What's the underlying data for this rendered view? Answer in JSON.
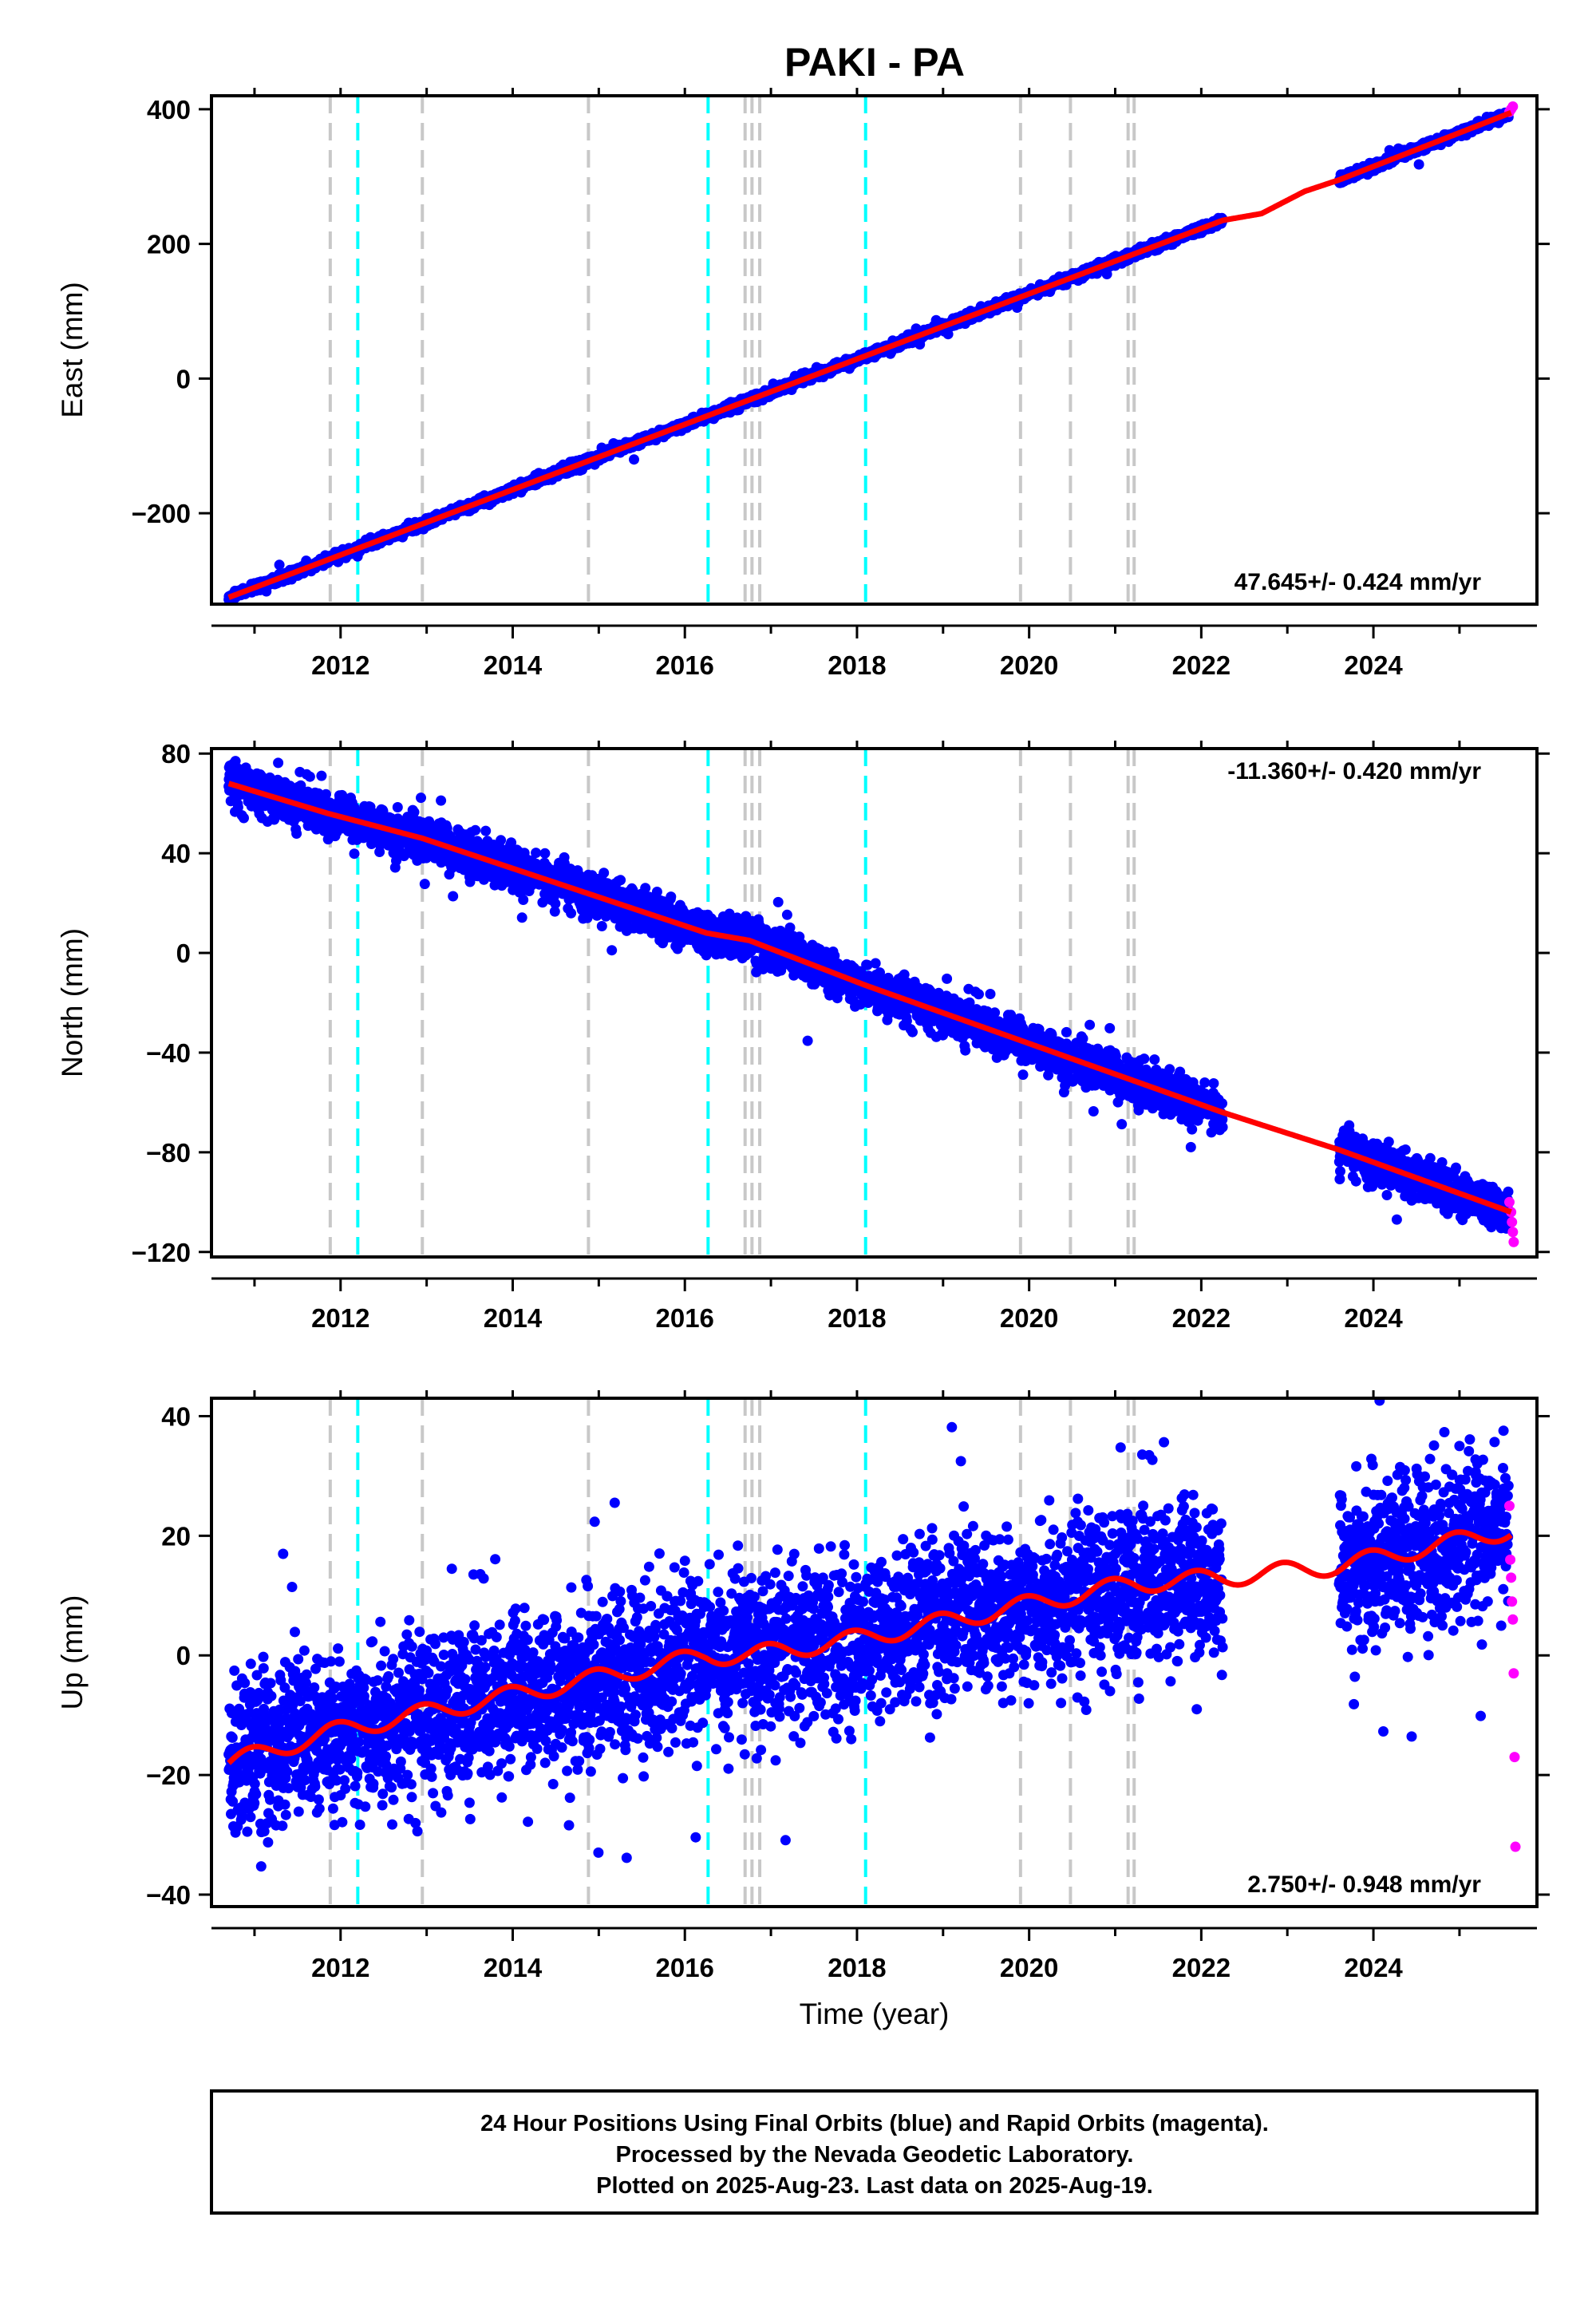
{
  "title": "PAKI - PA",
  "caption": {
    "lines": [
      "24 Hour Positions Using Final Orbits (blue) and Rapid Orbits (magenta).",
      "Processed by the Nevada Geodetic Laboratory.",
      "Plotted on 2025-Aug-23. Last data on 2025-Aug-19."
    ]
  },
  "colors": {
    "final_orbits": "#0000ff",
    "rapid_orbits": "#ff00ff",
    "model": "#ff0000",
    "equipment_change": "#c8c8c8",
    "earthquake": "#00ffff",
    "frame": "#000000"
  },
  "chart_data": [
    {
      "type": "scatter",
      "component": "east",
      "ylabel": "East (mm)",
      "xlabel": "",
      "xlim": [
        2010.5,
        2025.9
      ],
      "ylim": [
        -335,
        420
      ],
      "yticks": [
        -200,
        0,
        200,
        400
      ],
      "xticks": [
        2012,
        2014,
        2016,
        2018,
        2020,
        2022,
        2024
      ],
      "rate_text": "47.645+/- 0.424 mm/yr",
      "rate_position": "bottom-right",
      "rate_mm_per_yr": 47.645,
      "noise_mm": 3,
      "offsets": [],
      "seasonal_amp_mm": 0,
      "data_gap": [
        2022.25,
        2023.6
      ],
      "model_points": [
        [
          2010.7,
          -325
        ],
        [
          2022.25,
          235
        ],
        [
          2022.7,
          245
        ],
        [
          2023.2,
          278
        ],
        [
          2023.6,
          295
        ],
        [
          2025.6,
          395
        ]
      ],
      "rapid_points": [
        [
          2025.58,
          396
        ],
        [
          2025.6,
          400
        ],
        [
          2025.62,
          404
        ]
      ]
    },
    {
      "type": "scatter",
      "component": "north",
      "ylabel": "North (mm)",
      "xlabel": "",
      "xlim": [
        2010.5,
        2025.9
      ],
      "ylim": [
        -122,
        82
      ],
      "yticks": [
        -120,
        -80,
        -40,
        0,
        40,
        80
      ],
      "xticks": [
        2012,
        2014,
        2016,
        2018,
        2020,
        2022,
        2024
      ],
      "rate_text": "-11.360+/- 0.420 mm/yr",
      "rate_position": "top-right",
      "rate_mm_per_yr": -11.36,
      "noise_mm": 4,
      "offsets": [
        [
          2011.85,
          4
        ],
        [
          2012.95,
          2
        ],
        [
          2016.25,
          3
        ],
        [
          2016.75,
          -2
        ],
        [
          2018.1,
          -8
        ]
      ],
      "seasonal_amp_mm": 0,
      "data_gap": [
        2022.25,
        2023.6
      ],
      "model_points": [
        [
          2010.7,
          68
        ],
        [
          2011.85,
          56
        ],
        [
          2012.95,
          46
        ],
        [
          2016.25,
          8
        ],
        [
          2016.75,
          5
        ],
        [
          2018.1,
          -13
        ],
        [
          2022.25,
          -64
        ],
        [
          2023.6,
          -79
        ],
        [
          2025.6,
          -104
        ]
      ],
      "rapid_points": [
        [
          2025.58,
          -100
        ],
        [
          2025.6,
          -104
        ],
        [
          2025.61,
          -108
        ],
        [
          2025.62,
          -112
        ],
        [
          2025.63,
          -116
        ]
      ]
    },
    {
      "type": "scatter",
      "component": "up",
      "ylabel": "Up (mm)",
      "xlabel": "Time (year)",
      "xlim": [
        2010.5,
        2025.9
      ],
      "ylim": [
        -42,
        43
      ],
      "yticks": [
        -40,
        -20,
        0,
        20,
        40
      ],
      "xticks": [
        2012,
        2014,
        2016,
        2018,
        2020,
        2022,
        2024
      ],
      "rate_text": "2.750+/- 0.948 mm/yr",
      "rate_position": "bottom-right",
      "rate_mm_per_yr": 2.75,
      "noise_mm": 6.5,
      "offsets": [
        [
          2011.85,
          -5
        ],
        [
          2012.15,
          6
        ],
        [
          2014.9,
          -2
        ],
        [
          2016.25,
          3
        ],
        [
          2016.75,
          -3
        ],
        [
          2018.1,
          2
        ]
      ],
      "seasonal_amp_mm": 1.5,
      "data_gap": [
        2022.25,
        2023.6
      ],
      "model_points": [
        [
          2010.7,
          -18
        ],
        [
          2011.85,
          -13
        ],
        [
          2012.15,
          -12
        ],
        [
          2014.9,
          -4
        ],
        [
          2016.25,
          0
        ],
        [
          2016.75,
          0
        ],
        [
          2018.1,
          3
        ],
        [
          2020.5,
          10
        ],
        [
          2021.2,
          12
        ],
        [
          2022.25,
          13
        ],
        [
          2023.6,
          15
        ],
        [
          2025.6,
          21
        ]
      ],
      "rapid_points": [
        [
          2025.58,
          25
        ],
        [
          2025.59,
          16
        ],
        [
          2025.6,
          13
        ],
        [
          2025.61,
          9
        ],
        [
          2025.62,
          6
        ],
        [
          2025.63,
          -3
        ],
        [
          2025.64,
          -17
        ],
        [
          2025.65,
          -32
        ]
      ]
    }
  ],
  "event_lines": {
    "equipment": [
      2011.88,
      2012.95,
      2014.88,
      2016.7,
      2016.78,
      2016.87,
      2019.9,
      2020.48,
      2021.15,
      2021.22
    ],
    "earthquake": [
      2012.2,
      2016.27,
      2018.1
    ]
  }
}
